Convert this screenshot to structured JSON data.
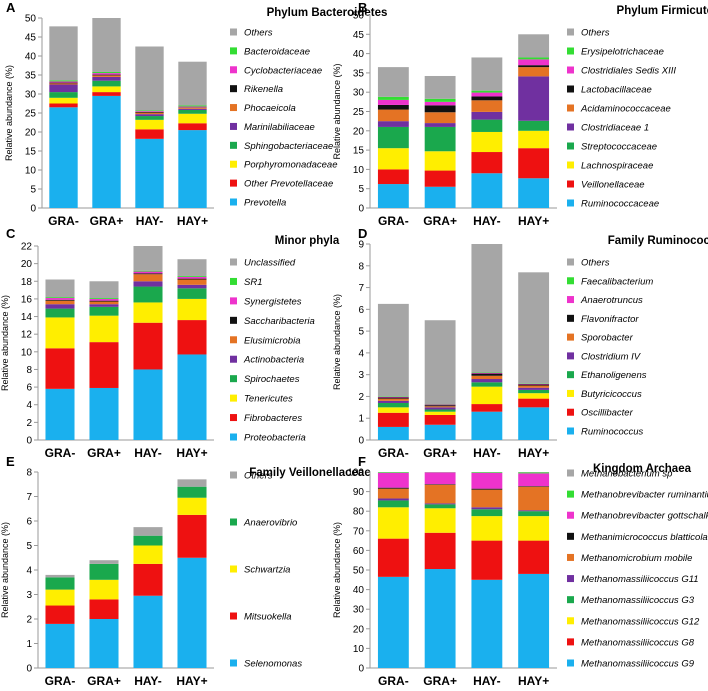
{
  "colors": {
    "gray": "#a6a6a6",
    "lime": "#33dd33",
    "magenta": "#ee33cc",
    "black": "#111111",
    "orange": "#e47324",
    "purple": "#7030a0",
    "green": "#1aa84d",
    "yellow": "#ffee00",
    "red": "#ee1111",
    "blue": "#1ab0ee"
  },
  "chart_data": [
    {
      "letter": "A",
      "type": "bar",
      "title": "Phylum Bacteroidetes",
      "ylabel": "Relative abundance (%)",
      "ylim": [
        0,
        50
      ],
      "yticks": [
        0,
        5,
        10,
        15,
        20,
        25,
        30,
        35,
        40,
        45,
        50
      ],
      "categories": [
        "GRA-",
        "GRA+",
        "HAY-",
        "HAY+"
      ],
      "series": [
        {
          "name": "Prevotella",
          "color": "blue",
          "values": [
            26.5,
            29.5,
            18.2,
            20.5
          ]
        },
        {
          "name": "Other Prevotellaceae",
          "color": "red",
          "values": [
            1.0,
            1.0,
            2.5,
            1.8
          ]
        },
        {
          "name": "Porphyromonadaceae",
          "color": "yellow",
          "values": [
            1.5,
            1.5,
            2.5,
            2.5
          ]
        },
        {
          "name": "Sphingobacteriaceae",
          "color": "green",
          "values": [
            1.5,
            1.5,
            1.0,
            1.0
          ]
        },
        {
          "name": "Marinilabiliaceae",
          "color": "purple",
          "values": [
            2.0,
            1.0,
            0.5,
            0.3
          ]
        },
        {
          "name": "Phocaeicola",
          "color": "orange",
          "values": [
            0.3,
            0.4,
            0.4,
            0.3
          ]
        },
        {
          "name": "Rikenella",
          "color": "black",
          "values": [
            0.2,
            0.2,
            0.2,
            0.1
          ]
        },
        {
          "name": "Cyclobacteriaceae",
          "color": "magenta",
          "values": [
            0.3,
            0.4,
            0.2,
            0.2
          ]
        },
        {
          "name": "Bacteroidaceae",
          "color": "lime",
          "values": [
            0.3,
            0.3,
            0.2,
            0.3
          ]
        },
        {
          "name": "Others",
          "color": "gray",
          "values": [
            14.2,
            14.2,
            16.8,
            11.5
          ]
        }
      ]
    },
    {
      "letter": "B",
      "type": "bar",
      "title": "Phylum Firmicutes",
      "ylabel": "Relative abundance (%)",
      "ylim": [
        0,
        50
      ],
      "yticks": [
        0,
        5,
        10,
        15,
        20,
        25,
        30,
        35,
        40,
        45,
        50
      ],
      "categories": [
        "GRA-",
        "GRA+",
        "HAY-",
        "HAY+"
      ],
      "series": [
        {
          "name": "Ruminococcaceae",
          "color": "blue",
          "values": [
            6.2,
            5.5,
            9.0,
            7.7
          ]
        },
        {
          "name": "Veillonellaceae",
          "color": "red",
          "values": [
            3.8,
            4.2,
            5.5,
            7.8
          ]
        },
        {
          "name": "Lachnospiraceae",
          "color": "yellow",
          "values": [
            5.5,
            5.0,
            5.2,
            4.5
          ]
        },
        {
          "name": "Streptococcaceae",
          "color": "green",
          "values": [
            5.5,
            6.3,
            3.2,
            2.6
          ]
        },
        {
          "name": "Clostridiaceae 1",
          "color": "purple",
          "values": [
            1.5,
            1.0,
            2.0,
            11.5
          ]
        },
        {
          "name": "Acidaminococcaceae",
          "color": "orange",
          "values": [
            3.0,
            2.8,
            3.0,
            2.4
          ]
        },
        {
          "name": "Lactobacillaceae",
          "color": "black",
          "values": [
            1.2,
            1.8,
            1.0,
            0.5
          ]
        },
        {
          "name": "Clostridiales Sedis XIII",
          "color": "magenta",
          "values": [
            1.3,
            0.9,
            1.0,
            1.5
          ]
        },
        {
          "name": "Erysipelotrichaceae",
          "color": "lime",
          "values": [
            0.8,
            0.8,
            0.5,
            0.5
          ]
        },
        {
          "name": "Others",
          "color": "gray",
          "values": [
            7.7,
            5.9,
            8.6,
            6.0
          ]
        }
      ]
    },
    {
      "letter": "C",
      "type": "bar",
      "title": "Minor phyla",
      "ylabel": "Relative abundance (%)",
      "ylim": [
        0,
        22
      ],
      "yticks": [
        0,
        2,
        4,
        6,
        8,
        10,
        12,
        14,
        16,
        18,
        20,
        22
      ],
      "categories": [
        "GRA-",
        "GRA+",
        "HAY-",
        "HAY+"
      ],
      "series": [
        {
          "name": "Proteobacteria",
          "color": "blue",
          "values": [
            5.8,
            5.9,
            8.0,
            9.7
          ]
        },
        {
          "name": "Fibrobacteres",
          "color": "red",
          "values": [
            4.6,
            5.2,
            5.3,
            3.9
          ]
        },
        {
          "name": "Tenericutes",
          "color": "yellow",
          "values": [
            3.5,
            3.0,
            2.3,
            2.4
          ]
        },
        {
          "name": "Spirochaetes",
          "color": "green",
          "values": [
            1.0,
            1.0,
            1.8,
            1.2
          ]
        },
        {
          "name": "Actinobacteria",
          "color": "purple",
          "values": [
            0.5,
            0.3,
            0.6,
            0.4
          ]
        },
        {
          "name": "Elusimicrobia",
          "color": "orange",
          "values": [
            0.4,
            0.3,
            0.8,
            0.6
          ]
        },
        {
          "name": "Saccharibacteria",
          "color": "black",
          "values": [
            0.1,
            0.1,
            0.1,
            0.1
          ]
        },
        {
          "name": "Synergistetes",
          "color": "magenta",
          "values": [
            0.2,
            0.2,
            0.2,
            0.2
          ]
        },
        {
          "name": "SR1",
          "color": "lime",
          "values": [
            0.1,
            0.1,
            0.1,
            0.1
          ]
        },
        {
          "name": "Unclassified",
          "color": "gray",
          "values": [
            2.0,
            1.9,
            2.8,
            1.9
          ]
        }
      ]
    },
    {
      "letter": "D",
      "type": "bar",
      "title": "Family Ruminococcaceae",
      "ylabel": "Relative abundance (%)",
      "ylim": [
        0,
        9
      ],
      "yticks": [
        0,
        1,
        2,
        3,
        4,
        5,
        6,
        7,
        8,
        9
      ],
      "categories": [
        "GRA-",
        "GRA+",
        "HAY-",
        "HAY+"
      ],
      "series": [
        {
          "name": "Ruminococcus",
          "color": "blue",
          "values": [
            0.6,
            0.7,
            1.3,
            1.5
          ]
        },
        {
          "name": "Oscillibacter",
          "color": "red",
          "values": [
            0.65,
            0.45,
            0.35,
            0.4
          ]
        },
        {
          "name": "Butyricicoccus",
          "color": "yellow",
          "values": [
            0.25,
            0.15,
            0.8,
            0.25
          ]
        },
        {
          "name": "Ethanoligenens",
          "color": "green",
          "values": [
            0.2,
            0.1,
            0.2,
            0.15
          ]
        },
        {
          "name": "Clostridium IV",
          "color": "purple",
          "values": [
            0.1,
            0.1,
            0.15,
            0.1
          ]
        },
        {
          "name": "Sporobacter",
          "color": "orange",
          "values": [
            0.1,
            0.05,
            0.15,
            0.1
          ]
        },
        {
          "name": "Flavonifractor",
          "color": "black",
          "values": [
            0.05,
            0.05,
            0.1,
            0.05
          ]
        },
        {
          "name": "Anaerotruncus",
          "color": "magenta",
          "values": [
            0.03,
            0.03,
            0.03,
            0.03
          ]
        },
        {
          "name": "Faecalibacterium",
          "color": "lime",
          "values": [
            0.02,
            0.02,
            0.02,
            0.02
          ]
        },
        {
          "name": "Others",
          "color": "gray",
          "values": [
            4.25,
            3.85,
            5.9,
            5.1
          ]
        }
      ]
    },
    {
      "letter": "E",
      "type": "bar",
      "title": "Family Veillonellaceae",
      "ylabel": "Relative abundance (%)",
      "ylim": [
        0,
        8
      ],
      "yticks": [
        0,
        1,
        2,
        3,
        4,
        5,
        6,
        7,
        8
      ],
      "categories": [
        "GRA-",
        "GRA+",
        "HAY-",
        "HAY+"
      ],
      "series": [
        {
          "name": "Selenomonas",
          "color": "blue",
          "values": [
            1.8,
            2.0,
            2.95,
            4.5
          ]
        },
        {
          "name": "Mitsuokella",
          "color": "red",
          "values": [
            0.75,
            0.8,
            1.3,
            1.75
          ]
        },
        {
          "name": "Schwartzia",
          "color": "yellow",
          "values": [
            0.65,
            0.8,
            0.75,
            0.7
          ]
        },
        {
          "name": "Anaerovibrio",
          "color": "green",
          "values": [
            0.5,
            0.65,
            0.4,
            0.45
          ]
        },
        {
          "name": "Others",
          "color": "gray",
          "values": [
            0.1,
            0.15,
            0.35,
            0.3
          ]
        }
      ]
    },
    {
      "letter": "F",
      "type": "bar",
      "title": "Kingdom Archaea",
      "ylabel": "Relative abundance (%)",
      "ylim": [
        0,
        100
      ],
      "yticks": [
        0,
        10,
        20,
        30,
        40,
        50,
        60,
        70,
        80,
        90,
        100
      ],
      "categories": [
        "GRA-",
        "GRA+",
        "HAY-",
        "HAY+"
      ],
      "series": [
        {
          "name": "Methanomassiliicoccus G9",
          "color": "blue",
          "values": [
            46.5,
            50.5,
            45.0,
            48.0
          ]
        },
        {
          "name": "Methanomassiliicoccus G8",
          "color": "red",
          "values": [
            19.5,
            18.5,
            20.0,
            17.0
          ]
        },
        {
          "name": "Methanomassiliicoccus G12",
          "color": "yellow",
          "values": [
            16.0,
            12.5,
            12.5,
            12.5
          ]
        },
        {
          "name": "Methanomassiliicoccus G3",
          "color": "green",
          "values": [
            3.5,
            2.0,
            3.5,
            2.5
          ]
        },
        {
          "name": "Methanomassiliicoccus G11",
          "color": "purple",
          "values": [
            1.0,
            0.5,
            1.0,
            0.5
          ]
        },
        {
          "name": "Methanomicrobium mobile",
          "color": "orange",
          "values": [
            5.0,
            9.5,
            9.0,
            12.0
          ]
        },
        {
          "name": "Methanimicrococcus blatticola",
          "color": "black",
          "values": [
            0.5,
            0.3,
            0.5,
            0.3
          ]
        },
        {
          "name": "Methanobrevibacter gottschalkii",
          "color": "magenta",
          "values": [
            7.5,
            6.0,
            8.0,
            6.5
          ]
        },
        {
          "name": "Methanobrevibacter ruminantium",
          "color": "lime",
          "values": [
            0.3,
            0.1,
            0.3,
            0.5
          ]
        },
        {
          "name": "Methanobacterium sp",
          "color": "gray",
          "values": [
            0.2,
            0.1,
            0.2,
            0.2
          ]
        }
      ]
    }
  ]
}
